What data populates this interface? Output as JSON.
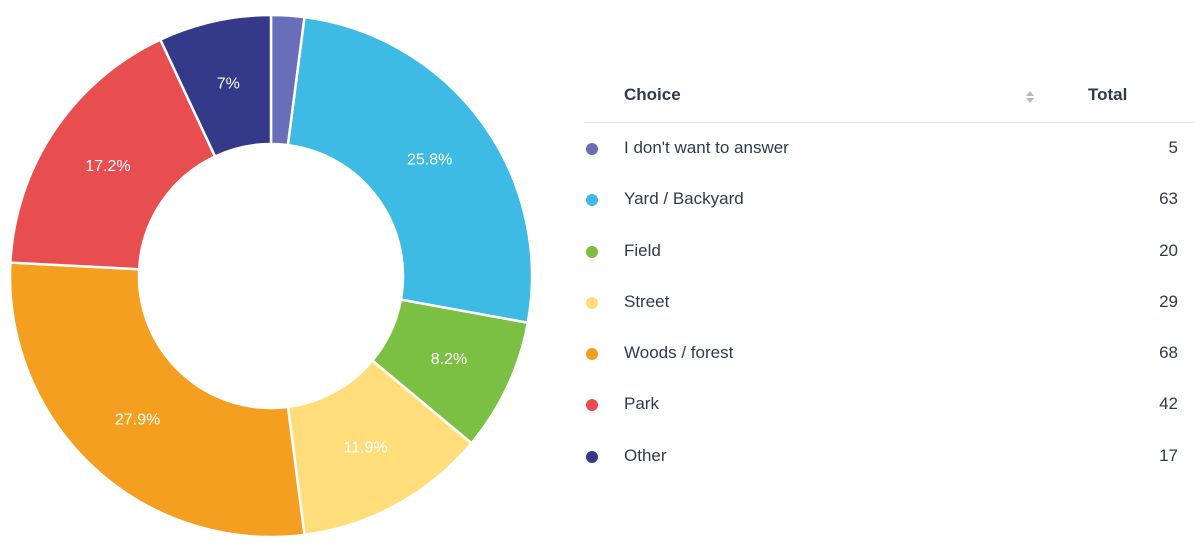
{
  "chart_data": {
    "type": "pie",
    "donut": true,
    "categories": [
      "I don't want to answer",
      "Yard / Backyard",
      "Field",
      "Street",
      "Woods / forest",
      "Park",
      "Other"
    ],
    "values": [
      5,
      63,
      20,
      29,
      68,
      42,
      17
    ],
    "percent_labels": [
      "",
      "25.8%",
      "8.2%",
      "11.9%",
      "27.9%",
      "17.2%",
      "7%"
    ],
    "colors": [
      "#6a6db8",
      "#3dbbe5",
      "#7bc043",
      "#fedd7a",
      "#f59f20",
      "#e84e50",
      "#343a89"
    ],
    "title": "",
    "legend": "right"
  },
  "table": {
    "headers": {
      "choice": "Choice",
      "total": "Total"
    },
    "sort_icon": "sort-arrows-icon",
    "rows": [
      {
        "label": "I don't want to answer",
        "total": "5",
        "color": "#6a6db8"
      },
      {
        "label": "Yard / Backyard",
        "total": "63",
        "color": "#3dbbe5"
      },
      {
        "label": "Field",
        "total": "20",
        "color": "#7bc043"
      },
      {
        "label": "Street",
        "total": "29",
        "color": "#fedd7a"
      },
      {
        "label": "Woods / forest",
        "total": "68",
        "color": "#f59f20"
      },
      {
        "label": "Park",
        "total": "42",
        "color": "#e84e50"
      },
      {
        "label": "Other",
        "total": "17",
        "color": "#343a89"
      }
    ]
  }
}
